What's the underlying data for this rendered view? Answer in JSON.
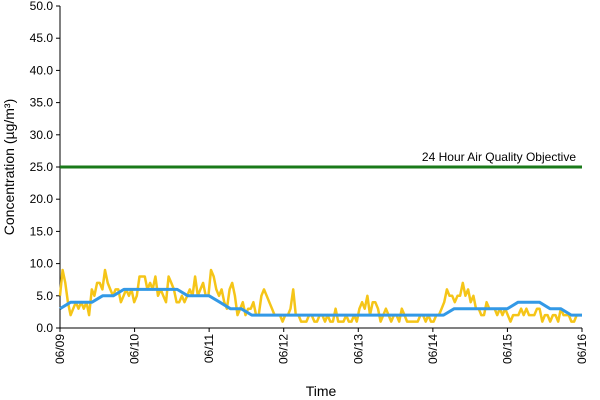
{
  "chart_data": {
    "type": "line",
    "title": "",
    "xlabel": "Time",
    "ylabel": "Concentration (µg/m³)",
    "ylim": [
      0,
      50
    ],
    "yticks": [
      "0.0",
      "5.0",
      "10.0",
      "15.0",
      "20.0",
      "25.0",
      "30.0",
      "35.0",
      "40.0",
      "45.0",
      "50.0"
    ],
    "xticks": [
      "06/09",
      "06/10",
      "06/11",
      "06/12",
      "06/13",
      "06/14",
      "06/15",
      "06/16"
    ],
    "grid": false,
    "legend": "none",
    "colors": {
      "hourly": "#f5c518",
      "daily": "#3399e6",
      "objective": "#1a7a1a"
    },
    "objective": {
      "label": "24 Hour Air Quality Objective",
      "value": 25
    },
    "series": [
      {
        "values": [
          5,
          9,
          7,
          4,
          2,
          3,
          4,
          3,
          4,
          3,
          4,
          2,
          6,
          5,
          7,
          7,
          6,
          9,
          7,
          6,
          5,
          6,
          6,
          4,
          5,
          6,
          5,
          6,
          4,
          5,
          8,
          8,
          8,
          6,
          7,
          6,
          8,
          5,
          6,
          5,
          4,
          8,
          7,
          6,
          4,
          4,
          5,
          4,
          5,
          6,
          5,
          8,
          5,
          6,
          7,
          5,
          5,
          9,
          8,
          6,
          5,
          6,
          4,
          3,
          6,
          7,
          5,
          2,
          3,
          4,
          2,
          3,
          3,
          4,
          2,
          2,
          5,
          6,
          5,
          4,
          3,
          2,
          2,
          2,
          1,
          2,
          2,
          3,
          6,
          2,
          2,
          1,
          1,
          1,
          2,
          2,
          1,
          1,
          2,
          2,
          1,
          2,
          1,
          1,
          3,
          1,
          1,
          1,
          2,
          1,
          1,
          2,
          1,
          3,
          4,
          3,
          5,
          2,
          4,
          4,
          3,
          1,
          2,
          3,
          2,
          1,
          2,
          2,
          1,
          3,
          2,
          1,
          1,
          1,
          1,
          1,
          2,
          2,
          1,
          2,
          1,
          1,
          2,
          2,
          3,
          4,
          6,
          5,
          5,
          4,
          5,
          5,
          7,
          5,
          6,
          4,
          5,
          3,
          3,
          2,
          2,
          4,
          3,
          3,
          3,
          2,
          3,
          2,
          3,
          2,
          1,
          2,
          2,
          2,
          3,
          2,
          3,
          2,
          2,
          2,
          3,
          3,
          1,
          2,
          2,
          1,
          2,
          2,
          1,
          3,
          2,
          2,
          2,
          1,
          1,
          2,
          2,
          2
        ]
      },
      {
        "values": [
          3,
          4,
          4,
          4,
          5,
          5,
          6,
          6,
          6,
          6,
          6,
          6,
          5,
          5,
          5,
          4,
          3,
          3,
          2,
          2,
          2,
          2,
          2,
          2,
          2,
          2,
          2,
          2,
          2,
          2,
          2,
          2,
          2,
          2,
          2,
          2,
          2,
          3,
          3,
          3,
          3,
          3,
          3,
          4,
          4,
          4,
          3,
          3,
          2,
          2
        ]
      }
    ]
  }
}
